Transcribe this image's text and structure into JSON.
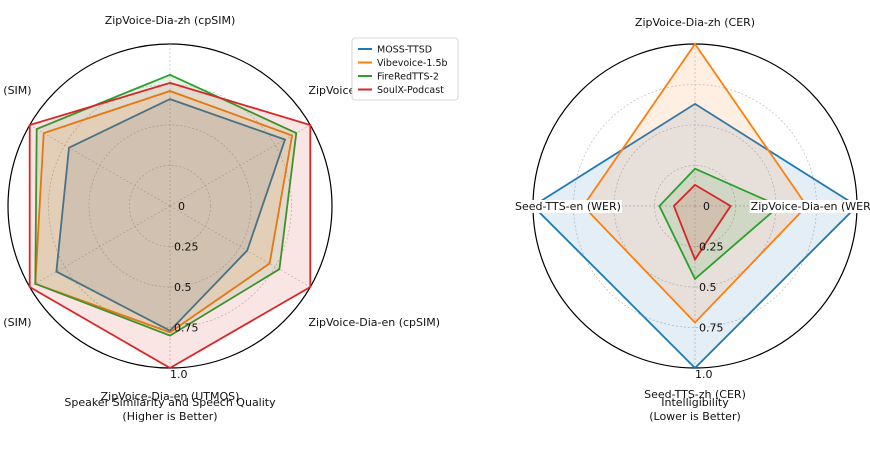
{
  "colors": {
    "MOSS-TTSD": "#1f77b4",
    "Vibevoice-1.5b": "#ff7f0e",
    "FireRedTTS-2": "#2ca02c",
    "SoulX-Podcast": "#d62728"
  },
  "legend": [
    "MOSS-TTSD",
    "Vibevoice-1.5b",
    "FireRedTTS-2",
    "SoulX-Podcast"
  ],
  "chart_data": [
    {
      "type": "radar",
      "title": "Speaker Similarity and Speech Quality",
      "subtitle": "(Higher is Better)",
      "axes": [
        "ZipVoice-Dia-zh (cpSIM)",
        "ZipVoice-Dia-zh (UTMOS)",
        "ZipVoice-Dia-en (cpSIM)",
        "ZipVoice-Dia-en (UTMOS)",
        "Seed-TTS-zh (SIM)",
        "Seed-TTS-en (SIM)"
      ],
      "radial_ticks": [
        "0",
        "0.25",
        "0.5",
        "0.75",
        "1.0"
      ],
      "radial_range": [
        0,
        1
      ],
      "grid": true,
      "series": [
        {
          "name": "MOSS-TTSD",
          "values": [
            0.66,
            0.82,
            0.55,
            0.77,
            0.81,
            0.72
          ]
        },
        {
          "name": "Vibevoice-1.5b",
          "values": [
            0.71,
            0.87,
            0.71,
            0.78,
            0.96,
            0.9
          ]
        },
        {
          "name": "FireRedTTS-2",
          "values": [
            0.81,
            0.9,
            0.78,
            0.8,
            0.96,
            0.95
          ]
        },
        {
          "name": "SoulX-Podcast",
          "values": [
            0.76,
            1.0,
            1.0,
            1.0,
            1.0,
            1.0
          ]
        }
      ]
    },
    {
      "type": "radar",
      "title": "Intelligibility",
      "subtitle": "(Lower is Better)",
      "axes": [
        "ZipVoice-Dia-zh (CER)",
        "ZipVoice-Dia-en (WER)",
        "Seed-TTS-zh (CER)",
        "Seed-TTS-en (WER)"
      ],
      "radial_ticks": [
        "0",
        "0.25",
        "0.5",
        "0.75",
        "1.0"
      ],
      "radial_range": [
        0,
        1
      ],
      "grid": true,
      "series": [
        {
          "name": "MOSS-TTSD",
          "values": [
            0.63,
            1.0,
            1.0,
            1.0
          ]
        },
        {
          "name": "Vibevoice-1.5b",
          "values": [
            1.0,
            0.69,
            0.72,
            0.69
          ]
        },
        {
          "name": "FireRedTTS-2",
          "values": [
            0.23,
            0.52,
            0.45,
            0.22
          ]
        },
        {
          "name": "SoulX-Podcast",
          "values": [
            0.13,
            0.22,
            0.33,
            0.13
          ]
        }
      ]
    }
  ]
}
